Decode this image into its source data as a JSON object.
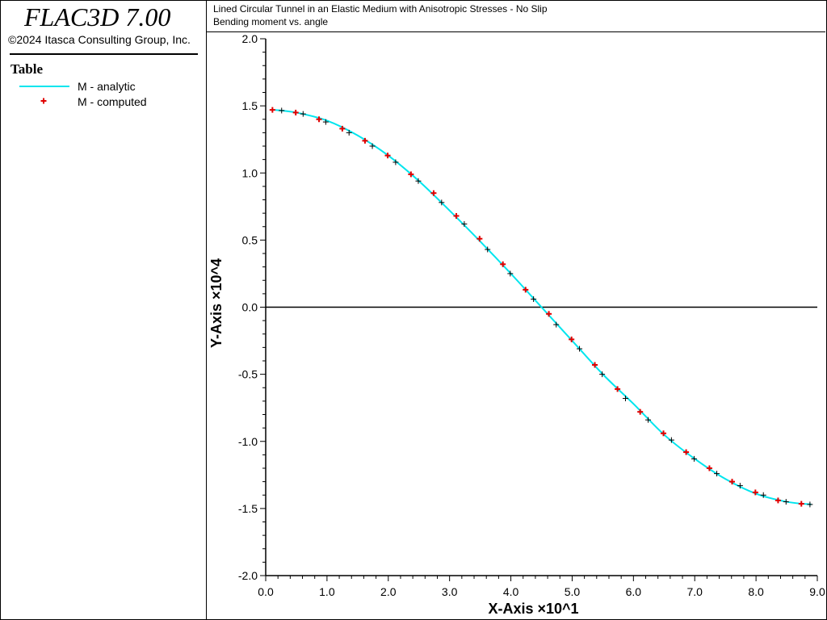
{
  "app": {
    "title": "FLAC3D 7.00",
    "copyright": "©2024 Itasca Consulting Group, Inc."
  },
  "legend": {
    "title": "Table",
    "items": [
      {
        "label": "M - analytic",
        "style": "line",
        "color": "#00e5ee"
      },
      {
        "label": "M - computed",
        "style": "plus",
        "color": "#e00000"
      }
    ]
  },
  "header": {
    "line1": "Lined Circular Tunnel in an Elastic Medium with Anisotropic Stresses - No Slip",
    "line2": "Bending moment vs. angle"
  },
  "chart_data": {
    "type": "line",
    "xlabel": "X-Axis ×10^1",
    "ylabel": "Y-Axis ×10^4",
    "xlim": [
      0.0,
      9.0
    ],
    "ylim": [
      -2.0,
      2.0
    ],
    "x_ticks": [
      "0.0",
      "1.0",
      "2.0",
      "3.0",
      "4.0",
      "5.0",
      "6.0",
      "7.0",
      "8.0",
      "9.0"
    ],
    "y_ticks": [
      "2.0",
      "1.5",
      "1.0",
      "0.5",
      "0.0",
      "-0.5",
      "-1.0",
      "-1.5",
      "-2.0"
    ],
    "colors": {
      "analytic": "#00e5ee",
      "computed": "#e00000",
      "computed_alt": "#000000"
    },
    "series": [
      {
        "name": "M - analytic",
        "style": "line",
        "x": [
          0.15,
          0.5,
          1.0,
          1.5,
          2.0,
          2.5,
          3.0,
          3.5,
          4.0,
          4.5,
          5.0,
          5.5,
          6.0,
          6.5,
          7.0,
          7.5,
          8.0,
          8.5,
          8.9
        ],
        "values": [
          1.47,
          1.45,
          1.39,
          1.28,
          1.13,
          0.94,
          0.72,
          0.49,
          0.25,
          0.0,
          -0.25,
          -0.5,
          -0.72,
          -0.95,
          -1.13,
          -1.28,
          -1.39,
          -1.45,
          -1.47
        ]
      },
      {
        "name": "M - computed",
        "style": "markers",
        "x": [
          0.11,
          0.26,
          0.49,
          0.61,
          0.87,
          0.98,
          1.25,
          1.36,
          1.62,
          1.74,
          1.99,
          2.12,
          2.37,
          2.49,
          2.74,
          2.87,
          3.11,
          3.24,
          3.49,
          3.62,
          3.87,
          3.99,
          4.24,
          4.37,
          4.62,
          4.74,
          4.99,
          5.12,
          5.37,
          5.49,
          5.74,
          5.87,
          6.11,
          6.24,
          6.49,
          6.62,
          6.86,
          6.99,
          7.24,
          7.36,
          7.61,
          7.74,
          7.99,
          8.12,
          8.36,
          8.49,
          8.74,
          8.88
        ],
        "values": [
          1.47,
          1.465,
          1.45,
          1.44,
          1.4,
          1.38,
          1.33,
          1.3,
          1.24,
          1.2,
          1.13,
          1.08,
          0.99,
          0.94,
          0.85,
          0.78,
          0.68,
          0.62,
          0.51,
          0.43,
          0.32,
          0.25,
          0.13,
          0.06,
          -0.05,
          -0.13,
          -0.24,
          -0.31,
          -0.43,
          -0.5,
          -0.61,
          -0.68,
          -0.78,
          -0.84,
          -0.94,
          -0.99,
          -1.08,
          -1.13,
          -1.2,
          -1.24,
          -1.3,
          -1.33,
          -1.38,
          -1.4,
          -1.44,
          -1.45,
          -1.465,
          -1.47
        ]
      }
    ]
  }
}
